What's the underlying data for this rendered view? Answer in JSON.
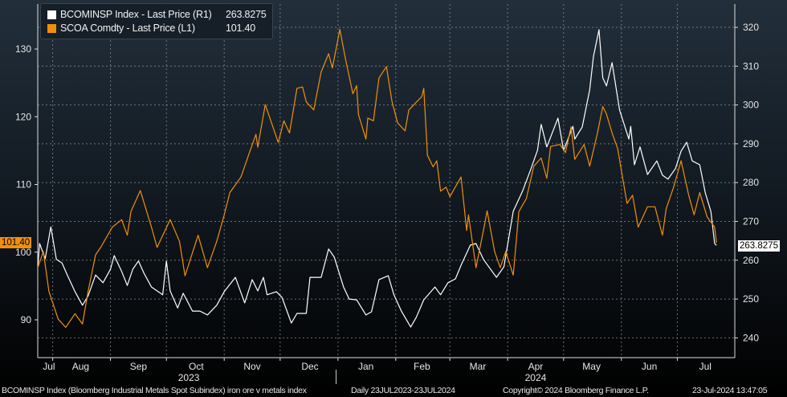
{
  "chart_data": {
    "type": "line",
    "title": "",
    "x_unit": "days since 2023-07-24",
    "x_range": [
      0,
      366
    ],
    "month_starts": [
      8,
      39,
      69,
      100,
      130,
      161,
      192,
      221,
      252,
      282,
      313,
      343
    ],
    "x_ticks": [
      {
        "label": "Jul",
        "day": 6
      },
      {
        "label": "Aug",
        "day": 23
      },
      {
        "label": "Sep",
        "day": 54
      },
      {
        "label": "Oct",
        "day": 85
      },
      {
        "label": "Nov",
        "day": 115
      },
      {
        "label": "Dec",
        "day": 146
      },
      {
        "label": "Jan",
        "day": 176
      },
      {
        "label": "Feb",
        "day": 206
      },
      {
        "label": "Mar",
        "day": 236
      },
      {
        "label": "Apr",
        "day": 267
      },
      {
        "label": "May",
        "day": 297
      },
      {
        "label": "Jun",
        "day": 328
      },
      {
        "label": "Jul",
        "day": 358
      }
    ],
    "year_labels": [
      {
        "label": "2023",
        "day": 81
      },
      {
        "label": "2024",
        "day": 267
      }
    ],
    "year_divider_day": 160,
    "y_left": {
      "ticks": [
        90,
        100,
        110,
        120,
        130
      ],
      "range": [
        81.6,
        136.5
      ]
    },
    "y_right": {
      "ticks": [
        240,
        250,
        260,
        270,
        280,
        290,
        300,
        310,
        320
      ],
      "range": [
        235,
        322
      ]
    },
    "grid": true,
    "legend_position": "top-left",
    "series": [
      {
        "name": "BCOMINSP Index - Last Price (R1)",
        "last": "263.8275",
        "axis": "right",
        "color": "#ffffff",
        "points": [
          [
            0,
            258.1
          ],
          [
            1,
            264.3
          ],
          [
            4,
            260.4
          ],
          [
            7,
            268.6
          ],
          [
            10,
            260.2
          ],
          [
            13,
            259.3
          ],
          [
            16,
            256.0
          ],
          [
            20,
            251.9
          ],
          [
            24,
            248.4
          ],
          [
            27,
            250.8
          ],
          [
            31,
            256.2
          ],
          [
            35,
            254.2
          ],
          [
            39,
            257.7
          ],
          [
            41,
            261.2
          ],
          [
            45,
            257.1
          ],
          [
            48,
            253.5
          ],
          [
            51,
            257.7
          ],
          [
            54,
            259.8
          ],
          [
            57,
            256.6
          ],
          [
            61,
            253.1
          ],
          [
            67,
            251.1
          ],
          [
            69,
            259.8
          ],
          [
            71,
            252.1
          ],
          [
            75,
            247.7
          ],
          [
            78,
            251.5
          ],
          [
            83,
            246.9
          ],
          [
            87,
            246.9
          ],
          [
            91,
            245.9
          ],
          [
            96,
            248.4
          ],
          [
            100,
            251.9
          ],
          [
            106,
            255.6
          ],
          [
            111,
            249.0
          ],
          [
            115,
            255.0
          ],
          [
            118,
            252.1
          ],
          [
            121,
            255.6
          ],
          [
            123,
            251.1
          ],
          [
            128,
            251.9
          ],
          [
            131,
            250.4
          ],
          [
            136,
            243.8
          ],
          [
            139,
            246.3
          ],
          [
            144,
            246.3
          ],
          [
            146,
            255.6
          ],
          [
            152,
            255.6
          ],
          [
            156,
            262.9
          ],
          [
            159,
            260.8
          ],
          [
            164,
            253.1
          ],
          [
            167,
            250.0
          ],
          [
            171,
            249.8
          ],
          [
            176,
            245.9
          ],
          [
            179,
            246.7
          ],
          [
            183,
            255.0
          ],
          [
            188,
            256.0
          ],
          [
            191,
            251.1
          ],
          [
            195,
            246.9
          ],
          [
            200,
            242.8
          ],
          [
            203,
            245.3
          ],
          [
            207,
            249.8
          ],
          [
            213,
            253.1
          ],
          [
            216,
            251.1
          ],
          [
            220,
            254.2
          ],
          [
            224,
            255.2
          ],
          [
            227,
            258.7
          ],
          [
            232,
            263.9
          ],
          [
            235,
            264.3
          ],
          [
            239,
            260.2
          ],
          [
            246,
            255.6
          ],
          [
            250,
            258.3
          ],
          [
            255,
            272.6
          ],
          [
            260,
            277.8
          ],
          [
            264,
            282.9
          ],
          [
            268,
            288.3
          ],
          [
            270,
            295.0
          ],
          [
            273,
            289.2
          ],
          [
            279,
            296.6
          ],
          [
            282,
            288.3
          ],
          [
            287,
            294.5
          ],
          [
            288,
            291.2
          ],
          [
            292,
            294.3
          ],
          [
            296,
            303.9
          ],
          [
            298,
            312.5
          ],
          [
            301,
            319.4
          ],
          [
            303,
            307.0
          ],
          [
            305,
            304.9
          ],
          [
            308,
            310.9
          ],
          [
            312,
            298.7
          ],
          [
            317,
            291.2
          ],
          [
            318,
            294.5
          ],
          [
            320,
            284.6
          ],
          [
            323,
            289.2
          ],
          [
            327,
            282.1
          ],
          [
            332,
            285.6
          ],
          [
            335,
            281.9
          ],
          [
            338,
            280.9
          ],
          [
            342,
            283.6
          ],
          [
            345,
            288.1
          ],
          [
            348,
            290.4
          ],
          [
            351,
            285.6
          ],
          [
            355,
            284.6
          ],
          [
            358,
            277.3
          ],
          [
            361,
            272.6
          ],
          [
            363,
            264.3
          ],
          [
            364,
            263.8275
          ]
        ]
      },
      {
        "name": "SCOA Comdty - Last Price (L1)",
        "last": "101.40",
        "axis": "left",
        "color": "#f0900a",
        "points": [
          [
            0,
            97.7
          ],
          [
            3,
            100.1
          ],
          [
            6,
            94.2
          ],
          [
            11,
            90.1
          ],
          [
            15,
            88.9
          ],
          [
            20,
            90.9
          ],
          [
            24,
            89.4
          ],
          [
            27,
            94.2
          ],
          [
            31,
            99.6
          ],
          [
            34,
            100.8
          ],
          [
            40,
            103.7
          ],
          [
            45,
            104.8
          ],
          [
            48,
            102.5
          ],
          [
            50,
            106.0
          ],
          [
            55,
            109.1
          ],
          [
            61,
            103.7
          ],
          [
            64,
            100.7
          ],
          [
            71,
            104.8
          ],
          [
            76,
            101.6
          ],
          [
            79,
            96.5
          ],
          [
            86,
            102.5
          ],
          [
            91,
            97.7
          ],
          [
            96,
            101.6
          ],
          [
            100,
            105.5
          ],
          [
            103,
            108.8
          ],
          [
            109,
            111.1
          ],
          [
            113,
            114.3
          ],
          [
            117,
            117.4
          ],
          [
            118,
            115.5
          ],
          [
            122,
            121.8
          ],
          [
            129,
            116.2
          ],
          [
            132,
            119.4
          ],
          [
            135,
            117.6
          ],
          [
            139,
            124.2
          ],
          [
            142,
            124.4
          ],
          [
            144,
            122.2
          ],
          [
            148,
            121.0
          ],
          [
            152,
            126.6
          ],
          [
            156,
            129.3
          ],
          [
            158,
            127.2
          ],
          [
            162,
            132.9
          ],
          [
            165,
            128.6
          ],
          [
            169,
            123.4
          ],
          [
            171,
            124.6
          ],
          [
            172,
            120.3
          ],
          [
            176,
            116.7
          ],
          [
            177,
            119.8
          ],
          [
            180,
            119.4
          ],
          [
            183,
            125.7
          ],
          [
            187,
            127.4
          ],
          [
            190,
            122.2
          ],
          [
            193,
            119.1
          ],
          [
            197,
            117.9
          ],
          [
            199,
            121.0
          ],
          [
            206,
            123.0
          ],
          [
            207,
            124.2
          ],
          [
            209,
            114.3
          ],
          [
            212,
            112.6
          ],
          [
            214,
            113.5
          ],
          [
            216,
            109.0
          ],
          [
            219,
            109.6
          ],
          [
            221,
            108.2
          ],
          [
            227,
            111.1
          ],
          [
            230,
            103.2
          ],
          [
            231,
            105.5
          ],
          [
            235,
            97.7
          ],
          [
            239,
            103.2
          ],
          [
            241,
            106.1
          ],
          [
            245,
            100.1
          ],
          [
            248,
            97.7
          ],
          [
            251,
            100.1
          ],
          [
            255,
            96.6
          ],
          [
            258,
            106.0
          ],
          [
            262,
            107.9
          ],
          [
            266,
            112.7
          ],
          [
            270,
            113.9
          ],
          [
            273,
            110.9
          ],
          [
            275,
            115.6
          ],
          [
            280,
            115.9
          ],
          [
            283,
            114.7
          ],
          [
            286,
            118.5
          ],
          [
            288,
            113.7
          ],
          [
            293,
            115.9
          ],
          [
            296,
            112.7
          ],
          [
            300,
            117.4
          ],
          [
            303,
            121.5
          ],
          [
            305,
            120.4
          ],
          [
            308,
            117.6
          ],
          [
            311,
            115.3
          ],
          [
            316,
            107.2
          ],
          [
            319,
            108.4
          ],
          [
            322,
            103.7
          ],
          [
            327,
            106.7
          ],
          [
            331,
            106.7
          ],
          [
            335,
            102.5
          ],
          [
            337,
            106.4
          ],
          [
            341,
            109.6
          ],
          [
            345,
            113.5
          ],
          [
            349,
            108.5
          ],
          [
            352,
            105.5
          ],
          [
            355,
            108.8
          ],
          [
            359,
            105.2
          ],
          [
            363,
            103.7
          ],
          [
            364,
            101.4
          ]
        ]
      }
    ]
  },
  "footer": {
    "description": "BCOMINSP Index (Bloomberg Industrial Metals Spot Subindex) iron ore v metals index",
    "range": "Daily 23JUL2023-23JUL2024",
    "copyright": "Copyright© 2024 Bloomberg Finance L.P.",
    "timestamp": "23-Jul-2024 13:47:05"
  }
}
